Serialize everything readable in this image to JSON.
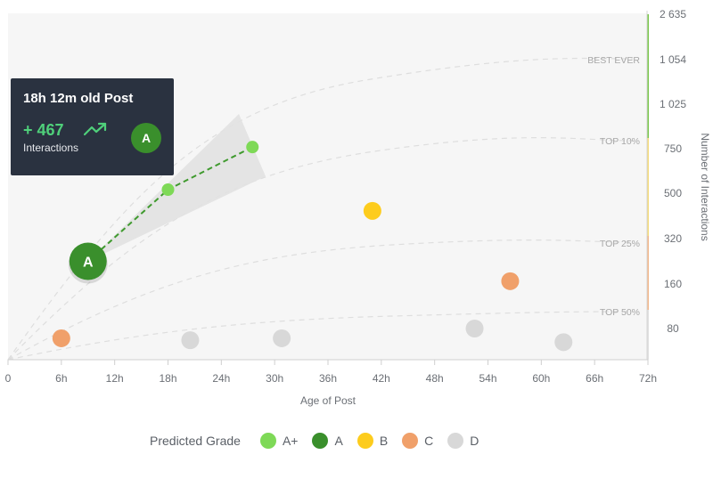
{
  "chart_data": {
    "type": "scatter",
    "xlabel": "Age of Post",
    "ylabel": "Number of Interactions",
    "x_ticks": [
      "0",
      "6h",
      "12h",
      "18h",
      "24h",
      "30h",
      "36h",
      "42h",
      "48h",
      "54h",
      "60h",
      "66h",
      "72h"
    ],
    "y_ticks": [
      "80",
      "160",
      "320",
      "500",
      "750",
      "1 025",
      "1 054",
      "2 635"
    ],
    "bands": [
      {
        "label": "BEST EVER",
        "color": "#7bc74d"
      },
      {
        "label": "TOP 10%",
        "color": "#f4d35e"
      },
      {
        "label": "TOP 25%",
        "color": "#f0a770"
      },
      {
        "label": "TOP 50%",
        "color": "#d9d9d9"
      }
    ],
    "series": [
      {
        "name": "A+",
        "color": "#7ed957",
        "points": [
          {
            "x": 18,
            "y": 520
          },
          {
            "x": 27.5,
            "y": 760
          }
        ]
      },
      {
        "name": "A",
        "color": "#3a8f2c",
        "points": [
          {
            "x": 9,
            "y": 240
          }
        ]
      },
      {
        "name": "B",
        "color": "#fdcc1d",
        "points": [
          {
            "x": 41,
            "y": 430
          }
        ]
      },
      {
        "name": "C",
        "color": "#f0a06a",
        "points": [
          {
            "x": 6,
            "y": 55
          },
          {
            "x": 56.5,
            "y": 170
          }
        ]
      },
      {
        "name": "D",
        "color": "#d8d8d8",
        "points": [
          {
            "x": 20.5,
            "y": 50
          },
          {
            "x": 30.8,
            "y": 55
          },
          {
            "x": 52.5,
            "y": 80
          },
          {
            "x": 62.5,
            "y": 45
          }
        ]
      }
    ],
    "highlight_label": "A",
    "legend_position": "bottom",
    "grid": false
  },
  "tooltip": {
    "title": "18h 12m old Post",
    "delta": "+ 467",
    "label": "Interactions",
    "grade": "A",
    "trend_icon": "trending-up-icon"
  },
  "legend": {
    "title": "Predicted Grade",
    "items": [
      {
        "label": "A+",
        "color": "#7ed957"
      },
      {
        "label": "A",
        "color": "#3a8f2c"
      },
      {
        "label": "B",
        "color": "#fdcc1d"
      },
      {
        "label": "C",
        "color": "#f0a06a"
      },
      {
        "label": "D",
        "color": "#d8d8d8"
      }
    ]
  }
}
